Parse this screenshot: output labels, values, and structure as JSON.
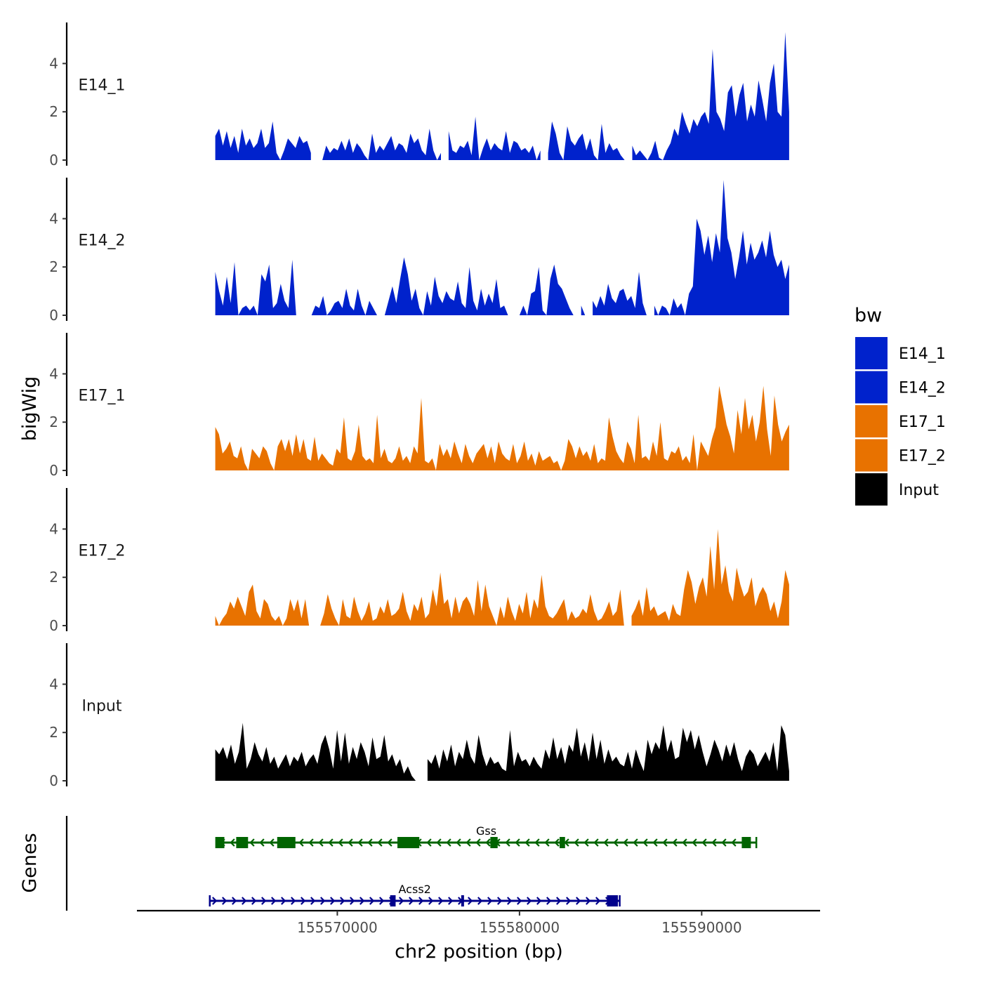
{
  "chart_data": {
    "type": "area",
    "title": "",
    "ylabel": "bigWig",
    "xlabel": "chr2 position (bp)",
    "genes_label": "Genes",
    "chromosome": "chr2",
    "xlim": [
      155559000,
      155596500
    ],
    "ylim": [
      0,
      5.7
    ],
    "x_range": [
      155563300,
      155594800
    ],
    "y_ticks": [
      0,
      2,
      4
    ],
    "x_ticks": [
      155570000,
      155580000,
      155590000
    ],
    "x_tick_labels": [
      "155570000",
      "155580000",
      "155590000"
    ],
    "legend": {
      "title": "bw",
      "position": "right",
      "entries": [
        {
          "label": "E14_1",
          "color": "#0022CC"
        },
        {
          "label": "E14_2",
          "color": "#0022CC"
        },
        {
          "label": "E17_1",
          "color": "#E87200"
        },
        {
          "label": "E17_2",
          "color": "#E87200"
        },
        {
          "label": "Input",
          "color": "#000000"
        }
      ]
    },
    "series": [
      {
        "name": "E14_1",
        "label": "E14_1",
        "color": "#0022CC",
        "values": [
          1.0,
          1.3,
          0.6,
          1.2,
          0.5,
          1.0,
          0.3,
          1.3,
          0.6,
          0.9,
          0.5,
          0.7,
          1.3,
          0.5,
          0.7,
          1.6,
          0.3,
          0.0,
          0.4,
          0.9,
          0.7,
          0.5,
          1.0,
          0.7,
          0.8,
          0.3,
          null,
          null,
          0.0,
          0.6,
          0.3,
          0.5,
          0.4,
          0.8,
          0.4,
          0.9,
          0.3,
          0.7,
          0.5,
          0.2,
          0.0,
          1.1,
          0.3,
          0.6,
          0.4,
          0.7,
          1.0,
          0.4,
          0.7,
          0.6,
          0.3,
          1.1,
          0.7,
          0.9,
          0.4,
          0.2,
          1.3,
          0.4,
          0.0,
          0.3,
          null,
          1.2,
          0.4,
          0.3,
          0.6,
          0.5,
          0.8,
          0.2,
          1.8,
          0.0,
          0.5,
          0.9,
          0.4,
          0.7,
          0.5,
          0.4,
          1.2,
          0.3,
          0.8,
          0.7,
          0.4,
          0.5,
          0.3,
          0.6,
          0.0,
          0.4,
          null,
          0.3,
          1.6,
          1.1,
          0.3,
          0.0,
          1.4,
          0.8,
          0.6,
          0.9,
          1.1,
          0.4,
          0.9,
          0.2,
          0.0,
          1.5,
          0.3,
          0.7,
          0.4,
          0.5,
          0.2,
          0.0,
          null,
          0.6,
          0.2,
          0.4,
          0.2,
          0.0,
          0.3,
          0.8,
          0.1,
          0.0,
          0.4,
          0.7,
          1.3,
          1.0,
          2.0,
          1.5,
          1.1,
          1.7,
          1.4,
          1.8,
          2.0,
          1.5,
          4.6,
          2.0,
          1.7,
          1.2,
          2.8,
          3.1,
          1.8,
          2.7,
          3.2,
          1.6,
          2.3,
          1.8,
          3.3,
          2.5,
          1.6,
          3.2,
          4.0,
          2.0,
          1.8,
          5.3,
          2.0
        ]
      },
      {
        "name": "E14_2",
        "label": "E14_2",
        "color": "#0022CC",
        "values": [
          1.8,
          1.0,
          0.4,
          1.6,
          0.5,
          2.2,
          0.0,
          0.3,
          0.4,
          0.2,
          0.4,
          0.0,
          1.7,
          1.4,
          2.1,
          0.3,
          0.5,
          1.3,
          0.6,
          0.3,
          2.3,
          0.0,
          null,
          null,
          null,
          0.0,
          0.4,
          0.3,
          0.8,
          0.0,
          0.2,
          0.5,
          0.6,
          0.3,
          1.1,
          0.4,
          0.2,
          1.1,
          0.4,
          0.0,
          0.6,
          0.3,
          0.0,
          null,
          0.0,
          0.6,
          1.2,
          0.5,
          1.5,
          2.4,
          1.7,
          0.6,
          1.1,
          0.3,
          0.0,
          1.0,
          0.4,
          1.6,
          0.8,
          0.5,
          1.0,
          0.7,
          0.6,
          1.4,
          0.5,
          0.3,
          2.0,
          0.6,
          0.2,
          1.1,
          0.4,
          0.9,
          0.5,
          1.5,
          0.3,
          0.4,
          0.0,
          null,
          null,
          0.0,
          0.4,
          0.0,
          0.9,
          1.0,
          2.0,
          0.2,
          0.0,
          1.5,
          2.1,
          1.3,
          1.1,
          0.7,
          0.3,
          0.0,
          null,
          0.4,
          0.0,
          null,
          0.6,
          0.3,
          0.8,
          0.4,
          1.3,
          0.7,
          0.5,
          1.0,
          1.1,
          0.6,
          0.8,
          0.3,
          1.8,
          0.5,
          0.0,
          null,
          0.4,
          0.0,
          0.4,
          0.3,
          0.0,
          0.7,
          0.3,
          0.5,
          0.0,
          0.9,
          1.2,
          4.0,
          3.5,
          2.5,
          3.3,
          2.2,
          3.4,
          2.6,
          5.6,
          3.2,
          2.6,
          1.5,
          2.4,
          3.5,
          2.1,
          3.0,
          2.3,
          2.6,
          3.1,
          2.4,
          3.5,
          2.5,
          2.0,
          2.3,
          1.5,
          2.1
        ]
      },
      {
        "name": "E17_1",
        "label": "E17_1",
        "color": "#E87200",
        "values": [
          1.8,
          1.5,
          0.7,
          0.9,
          1.2,
          0.6,
          0.5,
          1.0,
          0.3,
          0.0,
          0.9,
          0.7,
          0.5,
          1.0,
          0.8,
          0.3,
          0.0,
          1.0,
          1.3,
          0.8,
          1.3,
          0.6,
          1.5,
          0.7,
          1.3,
          0.5,
          0.4,
          1.4,
          0.4,
          0.7,
          0.5,
          0.3,
          0.2,
          0.9,
          0.7,
          2.2,
          0.5,
          0.4,
          0.8,
          1.9,
          0.6,
          0.4,
          0.5,
          0.3,
          2.3,
          0.5,
          0.9,
          0.4,
          0.3,
          0.5,
          1.0,
          0.4,
          0.6,
          0.3,
          1.0,
          0.7,
          3.0,
          0.4,
          0.3,
          0.5,
          0.0,
          1.1,
          0.6,
          0.9,
          0.5,
          1.2,
          0.7,
          0.3,
          1.1,
          0.6,
          0.3,
          0.7,
          0.9,
          1.1,
          0.5,
          1.0,
          0.3,
          1.2,
          0.7,
          0.5,
          0.4,
          1.1,
          0.3,
          0.6,
          1.2,
          0.4,
          0.7,
          0.2,
          0.8,
          0.4,
          0.5,
          0.6,
          0.3,
          0.4,
          0.0,
          0.4,
          1.3,
          1.0,
          0.5,
          1.0,
          0.6,
          0.8,
          0.4,
          1.1,
          0.3,
          0.5,
          0.4,
          2.2,
          1.4,
          0.8,
          0.5,
          0.3,
          1.2,
          0.9,
          0.3,
          2.3,
          0.5,
          0.6,
          0.4,
          1.2,
          0.6,
          2.0,
          0.5,
          0.4,
          0.8,
          0.7,
          1.0,
          0.4,
          0.6,
          0.3,
          1.5,
          0.0,
          1.2,
          0.9,
          0.6,
          1.3,
          1.8,
          3.5,
          2.7,
          1.9,
          1.4,
          0.7,
          2.5,
          1.5,
          3.0,
          1.7,
          2.3,
          1.2,
          2.0,
          3.5,
          1.7,
          0.6,
          3.1,
          1.9,
          1.2,
          1.6,
          1.9
        ]
      },
      {
        "name": "E17_2",
        "label": "E17_2",
        "color": "#E87200",
        "values": [
          0.4,
          0.0,
          0.3,
          0.5,
          1.0,
          0.7,
          1.2,
          0.8,
          0.4,
          1.4,
          1.7,
          0.6,
          0.3,
          1.1,
          0.9,
          0.4,
          0.2,
          0.4,
          0.0,
          0.3,
          1.1,
          0.6,
          1.1,
          0.3,
          1.1,
          0.0,
          null,
          null,
          0.0,
          0.5,
          1.3,
          0.7,
          0.3,
          0.0,
          1.1,
          0.4,
          0.3,
          1.2,
          0.6,
          0.2,
          0.5,
          1.0,
          0.2,
          0.3,
          0.8,
          0.5,
          1.1,
          0.4,
          0.5,
          0.7,
          1.4,
          0.6,
          0.2,
          0.9,
          0.6,
          1.2,
          0.3,
          0.5,
          1.5,
          0.8,
          2.2,
          0.9,
          1.1,
          0.3,
          1.2,
          0.5,
          1.0,
          1.2,
          0.9,
          0.4,
          1.9,
          0.6,
          1.7,
          0.8,
          0.4,
          0.0,
          0.8,
          0.3,
          1.2,
          0.6,
          0.2,
          0.9,
          0.5,
          1.4,
          0.3,
          1.1,
          0.7,
          2.1,
          0.8,
          0.4,
          0.3,
          0.5,
          0.8,
          1.1,
          0.2,
          0.6,
          0.3,
          0.4,
          0.7,
          0.5,
          1.3,
          0.6,
          0.2,
          0.3,
          0.6,
          1.0,
          0.4,
          0.6,
          1.5,
          0.0,
          null,
          0.4,
          0.7,
          1.1,
          0.4,
          1.6,
          0.6,
          0.8,
          0.4,
          0.5,
          0.6,
          0.2,
          0.9,
          0.5,
          0.4,
          1.5,
          2.3,
          1.8,
          0.9,
          1.6,
          2.0,
          1.2,
          3.3,
          1.5,
          4.0,
          1.7,
          2.5,
          1.4,
          1.0,
          2.4,
          1.7,
          1.2,
          1.4,
          2.0,
          0.8,
          1.3,
          1.6,
          1.3,
          0.6,
          1.0,
          0.3,
          1.0,
          2.3,
          1.7
        ]
      },
      {
        "name": "Input",
        "label": "Input",
        "color": "#000000",
        "values": [
          1.3,
          1.1,
          1.4,
          0.9,
          1.5,
          0.7,
          1.2,
          2.4,
          0.5,
          0.9,
          1.6,
          1.1,
          0.8,
          1.4,
          0.7,
          1.0,
          0.5,
          0.8,
          1.1,
          0.6,
          1.0,
          0.8,
          1.2,
          0.6,
          0.9,
          1.1,
          0.7,
          1.5,
          1.9,
          1.3,
          0.5,
          2.1,
          0.8,
          2.0,
          0.7,
          1.4,
          0.9,
          1.6,
          1.2,
          0.6,
          1.8,
          0.9,
          1.0,
          1.9,
          0.8,
          1.1,
          0.6,
          0.9,
          0.3,
          0.6,
          0.2,
          0.0,
          0.0,
          null,
          0.9,
          0.7,
          1.1,
          0.5,
          1.3,
          0.8,
          1.5,
          0.6,
          1.2,
          0.9,
          1.7,
          1.0,
          0.7,
          1.9,
          1.1,
          0.6,
          1.0,
          0.7,
          0.8,
          0.5,
          0.4,
          2.1,
          0.6,
          1.2,
          0.8,
          0.9,
          0.6,
          1.0,
          0.7,
          0.5,
          1.3,
          0.9,
          1.8,
          0.9,
          1.4,
          0.7,
          1.5,
          1.2,
          2.2,
          1.0,
          1.6,
          0.8,
          2.0,
          0.9,
          1.7,
          0.7,
          1.3,
          0.8,
          1.0,
          0.7,
          0.6,
          1.2,
          0.5,
          1.3,
          0.8,
          0.4,
          1.7,
          1.1,
          1.6,
          1.3,
          2.3,
          1.2,
          1.7,
          0.9,
          1.0,
          2.2,
          1.6,
          2.1,
          1.3,
          1.9,
          1.2,
          0.6,
          1.1,
          1.7,
          1.3,
          0.8,
          1.5,
          1.0,
          1.6,
          0.9,
          0.4,
          1.0,
          1.3,
          1.1,
          0.6,
          0.9,
          1.2,
          0.8,
          1.6,
          0.4,
          2.3,
          1.9,
          0.4
        ]
      }
    ],
    "genes": [
      {
        "name": "Gss",
        "strand": "-",
        "color": "#006400",
        "start": 155563350,
        "end": 155593000,
        "exons": [
          [
            155563350,
            155563800
          ],
          [
            155564450,
            155565100
          ],
          [
            155566700,
            155567700
          ],
          [
            155573300,
            155574500
          ],
          [
            155578400,
            155578800
          ],
          [
            155582200,
            155582500
          ],
          [
            155592200,
            155592700
          ]
        ]
      },
      {
        "name": "Acss2",
        "strand": "+",
        "color": "#00008B",
        "start": 155563000,
        "end": 155585500,
        "exons": [
          [
            155572900,
            155573200
          ],
          [
            155576800,
            155576950
          ],
          [
            155584800,
            155585400
          ]
        ]
      }
    ]
  }
}
